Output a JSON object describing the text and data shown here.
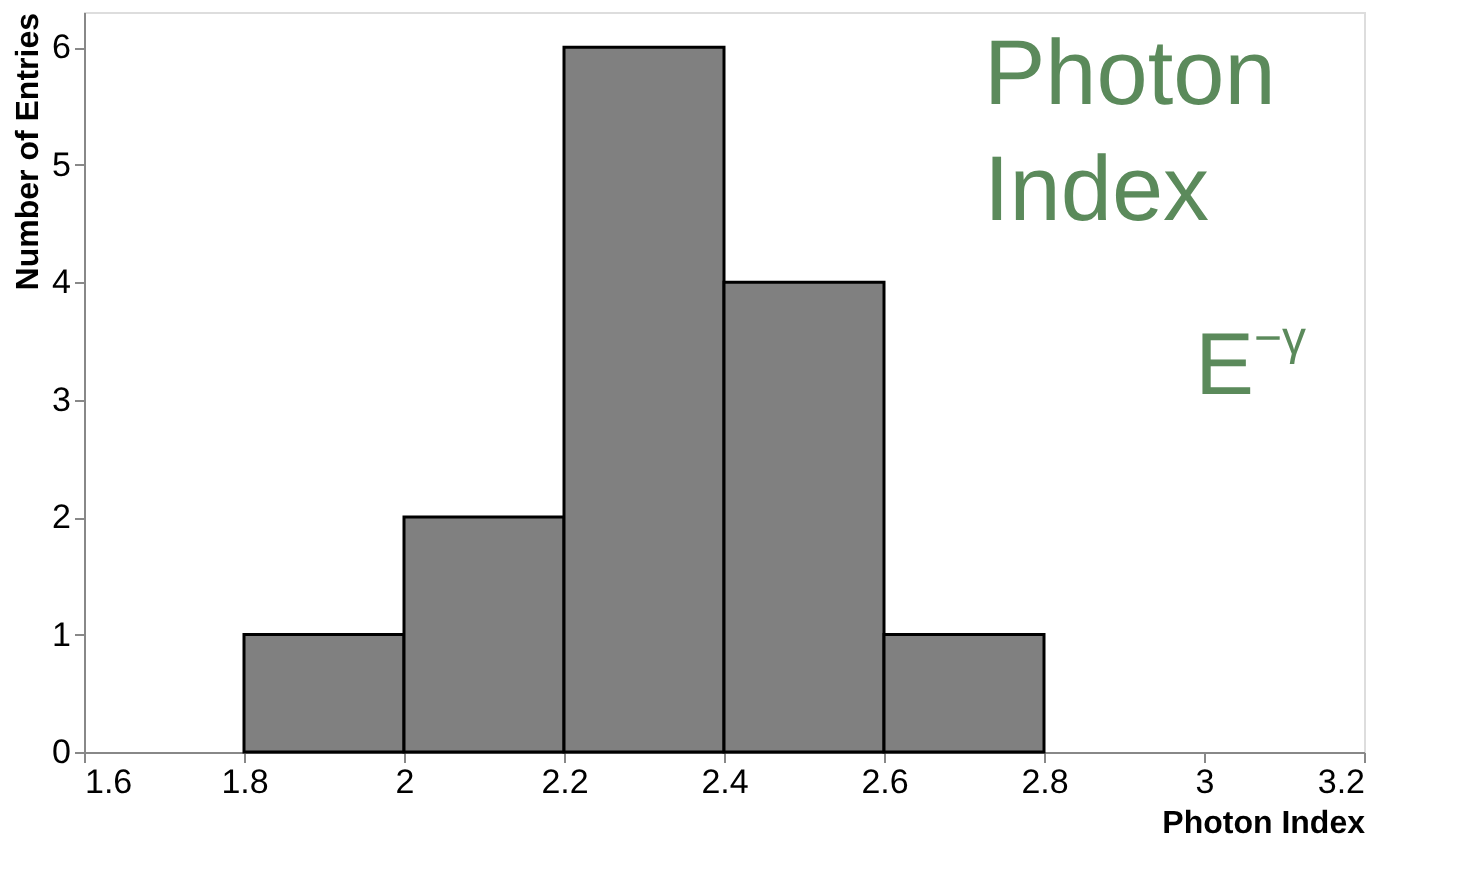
{
  "chart_data": {
    "type": "histogram",
    "xlabel": "Photon Index",
    "ylabel": "Number of Entries",
    "bins": [
      1.8,
      2.0,
      2.2,
      2.4,
      2.6,
      2.8
    ],
    "series": [
      {
        "color": "#808080",
        "values": [
          1,
          2,
          6,
          4,
          1
        ]
      }
    ],
    "xlim": [
      1.6,
      3.2
    ],
    "xticks": [
      1.6,
      1.8,
      2,
      2.2,
      2.4,
      2.6,
      2.8,
      3,
      3.2
    ],
    "ylim": [
      0,
      6.3
    ],
    "yticks": [
      0,
      1,
      2,
      3,
      4,
      5,
      6
    ],
    "annotations": [
      "Photon Index",
      "E$^{−γ}$"
    ],
    "grid": false
  }
}
